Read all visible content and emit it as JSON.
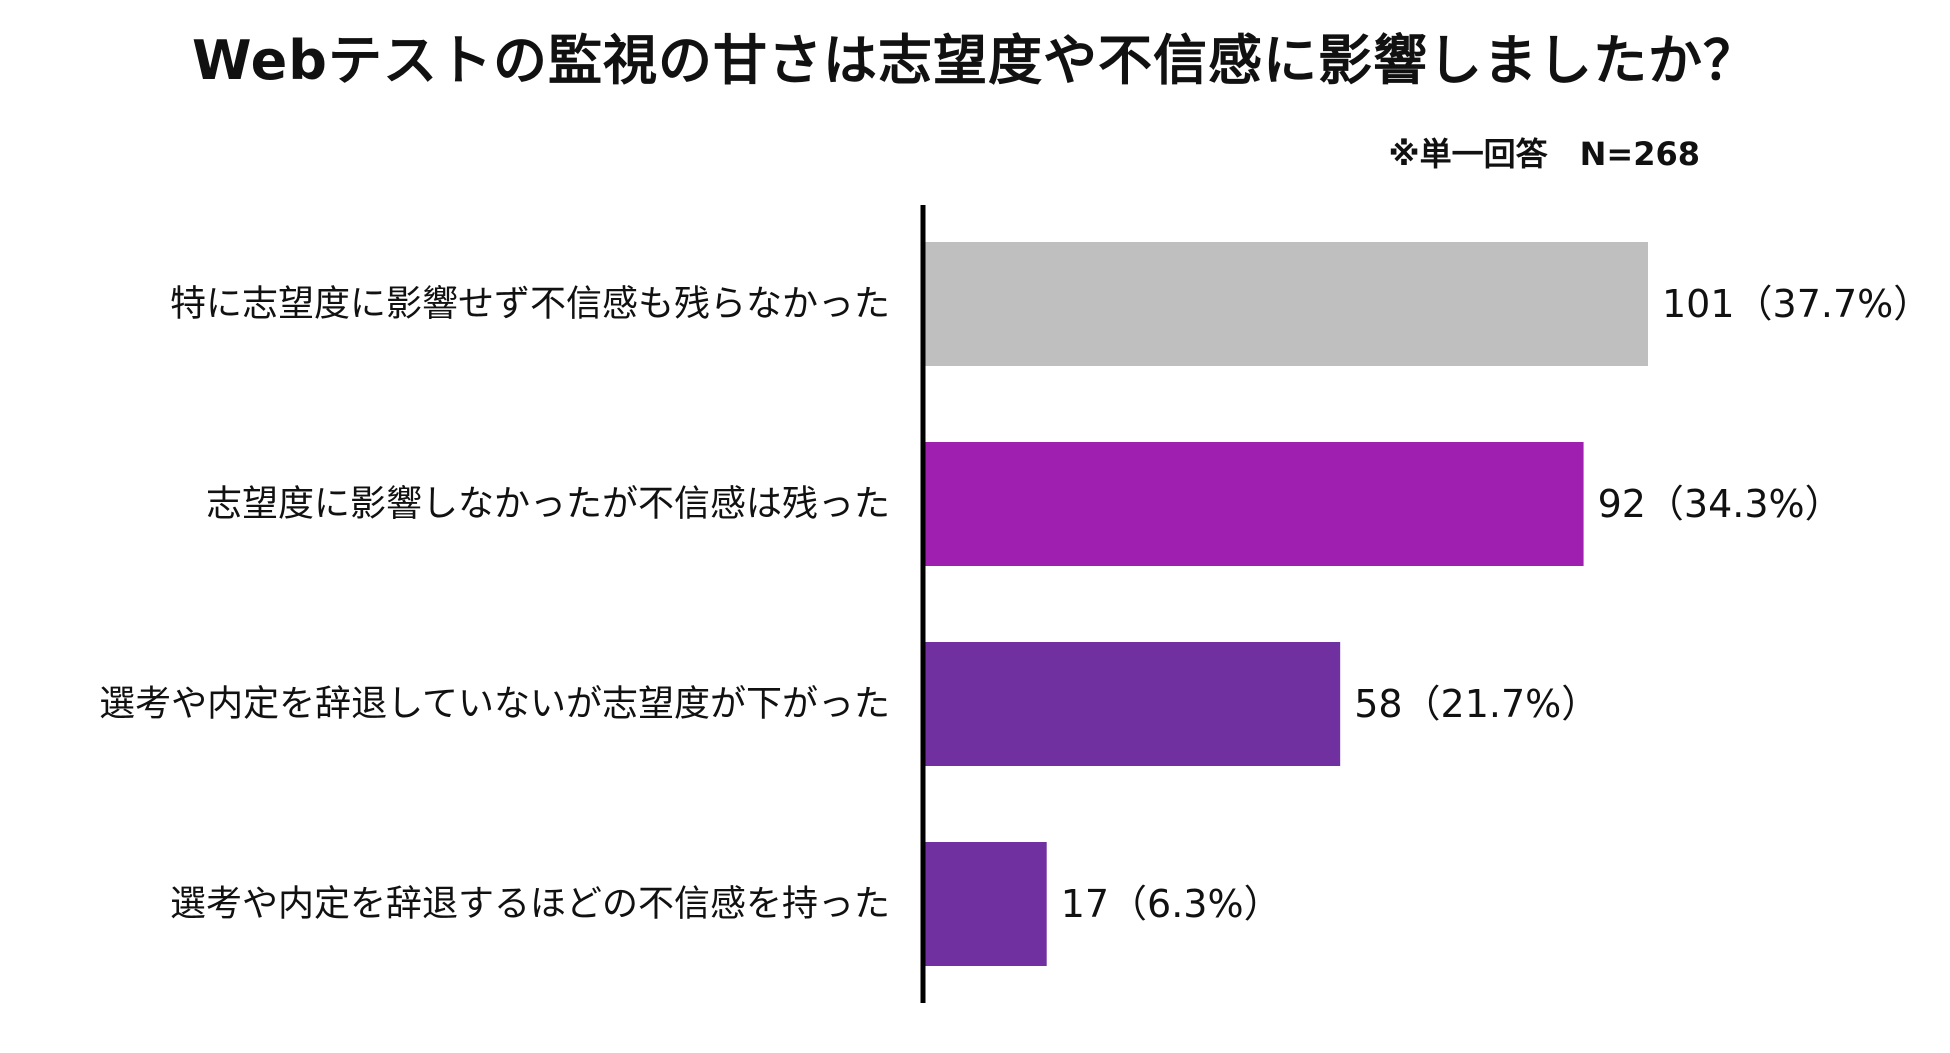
{
  "chart_data": {
    "type": "bar",
    "orientation": "horizontal",
    "title": "Webテストの監視の甘さは志望度や不信感に影響しましたか？",
    "note": "※単一回答　N=268",
    "categories": [
      "特に志望度に影響せず不信感も残らなかった",
      "志望度に影響しなかったが不信感は残った",
      "選考や内定を辞退していないが志望度が下がった",
      "選考や内定を辞退するほどの不信感を持った"
    ],
    "values": [
      101,
      92,
      58,
      17
    ],
    "value_labels": [
      "101（37.7%）",
      "92（34.3%）",
      "58（21.7%）",
      "17（6.3%）"
    ],
    "bar_colors": [
      "#bfbfbf",
      "#9e1fb0",
      "#70309f",
      "#70309f"
    ],
    "xlim": [
      0,
      101
    ],
    "grid": false,
    "legend": "none"
  }
}
